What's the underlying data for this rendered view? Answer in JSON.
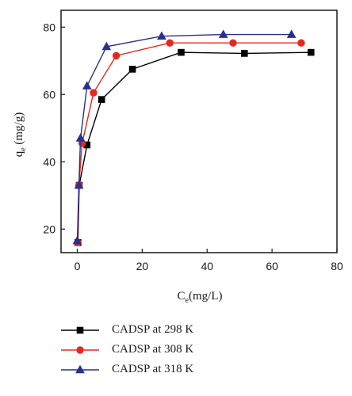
{
  "chart_data": {
    "type": "line",
    "title": "",
    "xlabel": "C",
    "xlabel_sub": "e",
    "xlabel_unit": "(mg/L)",
    "ylabel": "q",
    "ylabel_sub": "e",
    "ylabel_unit": " (mg/g)",
    "xlim": [
      -5,
      80
    ],
    "ylim": [
      13,
      85
    ],
    "xticks": [
      0,
      20,
      40,
      60,
      80
    ],
    "yticks": [
      20,
      40,
      60,
      80
    ],
    "grid": false,
    "legend_position": "bottom",
    "series": [
      {
        "name": "CADSP at 298 K",
        "color": "#000000",
        "marker": "square",
        "x": [
          0.2,
          0.6,
          3.0,
          7.5,
          17.0,
          32.0,
          51.5,
          72.0
        ],
        "y": [
          16.0,
          33.0,
          45.0,
          58.5,
          67.5,
          72.5,
          72.2,
          72.5
        ]
      },
      {
        "name": "CADSP at 308 K",
        "color": "#e8281e",
        "marker": "circle",
        "x": [
          0.1,
          0.5,
          1.5,
          5.0,
          12.0,
          28.5,
          48.0,
          69.0
        ],
        "y": [
          16.0,
          33.0,
          45.5,
          60.5,
          71.5,
          75.3,
          75.3,
          75.3
        ]
      },
      {
        "name": "CADSP at 318 K",
        "color": "#2b2f8f",
        "marker": "triangle",
        "x": [
          0.0,
          0.5,
          1.0,
          3.0,
          9.0,
          26.0,
          45.0,
          66.0
        ],
        "y": [
          16.5,
          33.0,
          47.0,
          62.5,
          74.2,
          77.3,
          77.8,
          77.8
        ]
      }
    ]
  }
}
